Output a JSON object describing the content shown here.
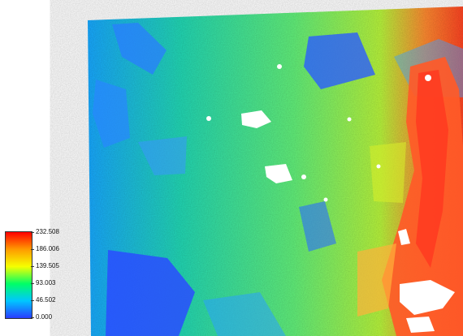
{
  "legend": {
    "labels": [
      "232.508",
      "186.006",
      "139.505",
      "93.003",
      "46.502",
      "0.000"
    ],
    "colors": [
      "#ff0000",
      "#ff9a00",
      "#f6ff00",
      "#00ff66",
      "#00c6ff",
      "#2a3cff"
    ]
  },
  "map": {
    "nodata_color": "#ffffff",
    "palette": {
      "low": "#2a56ff",
      "mid_low": "#22c9d8",
      "mid": "#4ef08a",
      "mid_high": "#b8f53c",
      "high": "#ff4f2a"
    }
  }
}
